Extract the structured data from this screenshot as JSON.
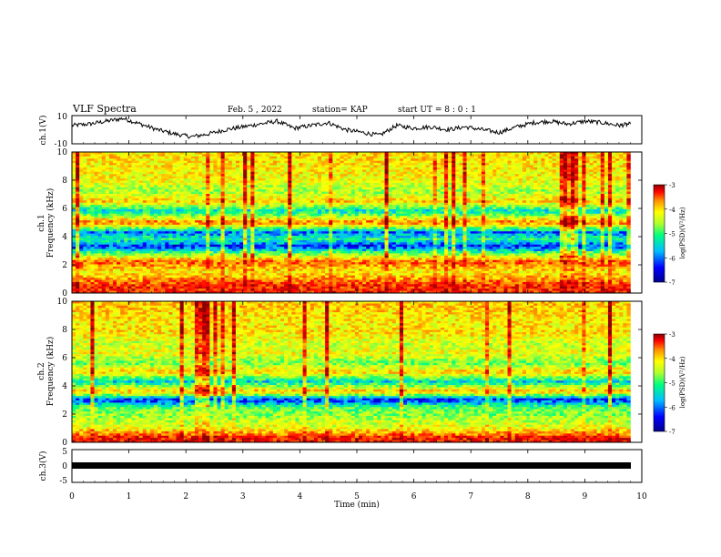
{
  "header": {
    "title": "VLF Spectra",
    "date": "Feb. 5 , 2022",
    "station": "station= KAP",
    "start_ut": "start UT = 8 : 0 : 1"
  },
  "axes": {
    "xlabel": "Time (min)",
    "ch1_voltage_label": "ch.1(V)",
    "ch1_spec_label_line1": "ch.1",
    "ch1_spec_label_line2": "Frequency (kHz)",
    "ch2_spec_label_line1": "ch.2",
    "ch2_spec_label_line2": "Frequency (kHz)",
    "ch3_voltage_label": "ch.3(V)",
    "colorbar_label": "log(PSD)(V²/Hz)"
  },
  "colors": {
    "scale": [
      "#00008b",
      "#0000ff",
      "#00bfff",
      "#00ff7f",
      "#adff2f",
      "#ffff00",
      "#ff8c00",
      "#ff0000",
      "#8b0000"
    ]
  },
  "chart_data": [
    {
      "type": "line",
      "panel": "ch1-voltage",
      "ylabel": "ch.1(V)",
      "xlim": [
        0,
        10
      ],
      "ylim": [
        -10,
        10
      ],
      "yticks": [
        "10",
        "-10"
      ],
      "x": [
        0,
        0.3,
        0.6,
        0.9,
        1.2,
        1.5,
        1.8,
        2.1,
        2.4,
        2.7,
        3.0,
        3.3,
        3.6,
        3.9,
        4.2,
        4.5,
        4.8,
        5.1,
        5.4,
        5.7,
        6.0,
        6.3,
        6.6,
        6.9,
        7.2,
        7.5,
        7.8,
        8.1,
        8.4,
        8.7,
        9.0,
        9.3,
        9.6,
        9.8
      ],
      "y": [
        3,
        4,
        6,
        8,
        4,
        0,
        -3,
        -5,
        -3,
        0,
        2,
        4,
        6,
        1,
        3,
        5,
        0,
        -2,
        -4,
        3,
        1,
        2,
        0,
        2,
        0,
        -2,
        2,
        5,
        6,
        4,
        6,
        5,
        3,
        4
      ]
    },
    {
      "type": "heatmap",
      "panel": "ch1-spectrogram",
      "ylabel": "Frequency (kHz)",
      "xlim": [
        0,
        10
      ],
      "ylim": [
        0,
        10
      ],
      "yticks": [
        "0",
        "2",
        "4",
        "6",
        "8",
        "10"
      ],
      "colorbar": {
        "range": [
          -7,
          -3
        ],
        "ticks": [
          "-3",
          "-4",
          "-5",
          "-6",
          "-7"
        ],
        "label": "log(PSD)(V²/Hz)"
      },
      "freq_kHz": [
        0.5,
        1.5,
        2.2,
        2.8,
        3.3,
        3.8,
        4.3,
        5.0,
        5.8,
        6.5,
        7.2,
        8.0,
        8.8,
        9.5
      ],
      "log_psd": [
        -3.6,
        -4.5,
        -3.8,
        -5.2,
        -6.5,
        -5.5,
        -6.2,
        -3.9,
        -5.8,
        -4.3,
        -5.0,
        -4.6,
        -4.5,
        -4.4
      ]
    },
    {
      "type": "heatmap",
      "panel": "ch2-spectrogram",
      "ylabel": "Frequency (kHz)",
      "xlim": [
        0,
        10
      ],
      "ylim": [
        0,
        10
      ],
      "yticks": [
        "0",
        "2",
        "4",
        "6",
        "8",
        "10"
      ],
      "colorbar": {
        "range": [
          -7,
          -3
        ],
        "ticks": [
          "-3",
          "-4",
          "-5",
          "-6",
          "-7"
        ],
        "label": "log(PSD)(V²/Hz)"
      },
      "freq_kHz": [
        0.3,
        1.0,
        1.8,
        2.5,
        3.0,
        3.6,
        4.3,
        5.0,
        5.6,
        6.3,
        7.0,
        7.8,
        8.5,
        9.5
      ],
      "log_psd": [
        -3.5,
        -4.6,
        -5.0,
        -5.3,
        -6.5,
        -4.2,
        -5.8,
        -4.3,
        -5.2,
        -4.6,
        -4.8,
        -4.4,
        -4.5,
        -4.3
      ]
    },
    {
      "type": "line",
      "panel": "ch3-voltage",
      "ylabel": "ch.3(V)",
      "xlim": [
        0,
        10
      ],
      "ylim": [
        -5,
        5
      ],
      "yticks": [
        "5",
        "0",
        "-5"
      ],
      "x": [
        0,
        9.8
      ],
      "y": [
        0,
        0
      ]
    }
  ],
  "x_axis": {
    "ticks": [
      "0",
      "1",
      "2",
      "3",
      "4",
      "5",
      "6",
      "7",
      "8",
      "9",
      "10"
    ]
  }
}
